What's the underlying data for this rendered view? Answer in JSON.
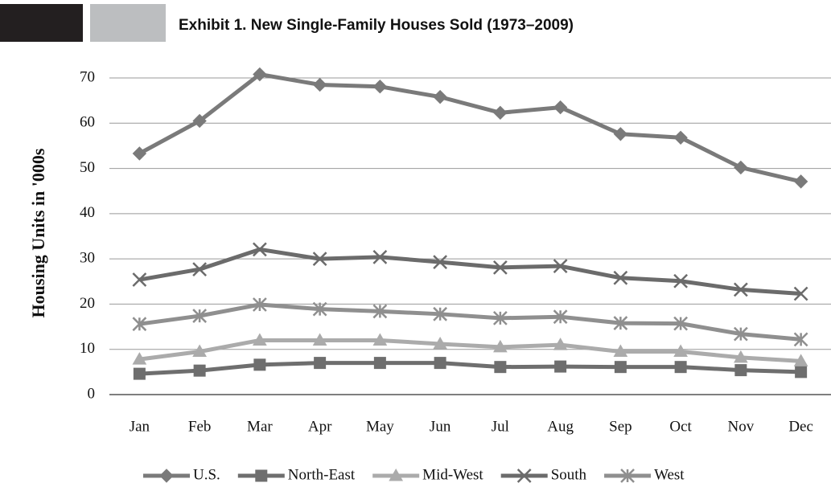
{
  "chart_data": {
    "type": "line",
    "title": "Exhibit 1. New Single-Family Houses Sold (1973–2009)",
    "y_label": "Housing Units in '000s",
    "categories": [
      "Jan",
      "Feb",
      "Mar",
      "Apr",
      "May",
      "Jun",
      "Jul",
      "Aug",
      "Sep",
      "Oct",
      "Nov",
      "Dec"
    ],
    "series": [
      {
        "name": "U.S.",
        "color": "#7a7a7a",
        "marker": "diamond",
        "values": [
          53.3,
          60.5,
          70.8,
          68.5,
          68.1,
          65.8,
          62.3,
          63.5,
          57.6,
          56.8,
          50.2,
          47.1
        ]
      },
      {
        "name": "North-East",
        "color": "#6e6e6e",
        "marker": "square",
        "values": [
          4.6,
          5.3,
          6.6,
          7.0,
          7.0,
          7.0,
          6.1,
          6.2,
          6.1,
          6.1,
          5.4,
          5.0
        ]
      },
      {
        "name": "Mid-West",
        "color": "#ababab",
        "marker": "triangle",
        "values": [
          7.8,
          9.5,
          12.0,
          12.0,
          12.0,
          11.2,
          10.5,
          11.0,
          9.5,
          9.5,
          8.2,
          7.4
        ]
      },
      {
        "name": "South",
        "color": "#6b6b6b",
        "marker": "x",
        "values": [
          25.4,
          27.7,
          32.1,
          30.0,
          30.4,
          29.3,
          28.1,
          28.4,
          25.8,
          25.1,
          23.2,
          22.3
        ]
      },
      {
        "name": "West",
        "color": "#8f8f8f",
        "marker": "star",
        "values": [
          15.6,
          17.4,
          19.9,
          18.9,
          18.4,
          17.8,
          16.9,
          17.2,
          15.8,
          15.7,
          13.4,
          12.2
        ]
      }
    ],
    "ylim": [
      0,
      70
    ],
    "yticks": [
      0,
      10,
      20,
      30,
      40,
      50,
      60,
      70
    ],
    "grid": true,
    "legend": "bottom"
  }
}
